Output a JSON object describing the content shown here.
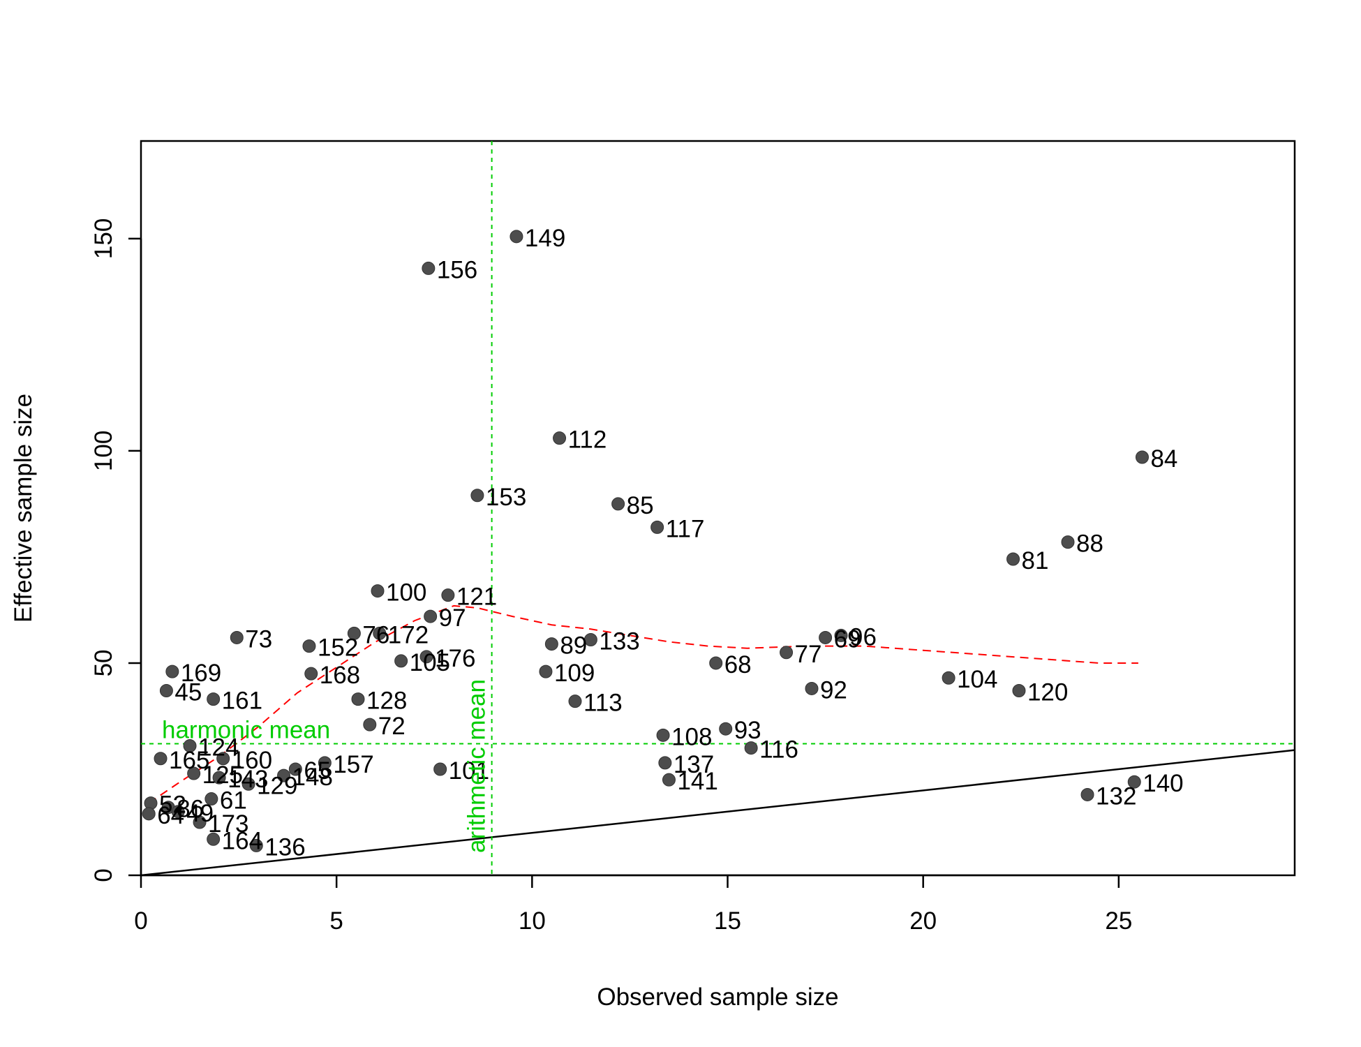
{
  "chart_data": {
    "type": "scatter",
    "xlabel": "Observed sample size",
    "ylabel": "Effective sample size",
    "xlim": [
      0,
      29.5
    ],
    "ylim": [
      0,
      173
    ],
    "x_ticks": [
      0,
      5,
      10,
      15,
      20,
      25
    ],
    "y_ticks": [
      0,
      50,
      100,
      150
    ],
    "grid": false,
    "point_color": "#4d4d4d",
    "points": [
      {
        "label": "149",
        "x": 9.6,
        "y": 150.5
      },
      {
        "label": "156",
        "x": 7.35,
        "y": 143
      },
      {
        "label": "112",
        "x": 10.7,
        "y": 103
      },
      {
        "label": "84",
        "x": 25.6,
        "y": 98.5
      },
      {
        "label": "153",
        "x": 8.6,
        "y": 89.5
      },
      {
        "label": "85",
        "x": 12.2,
        "y": 87.5
      },
      {
        "label": "117",
        "x": 13.2,
        "y": 82
      },
      {
        "label": "88",
        "x": 23.7,
        "y": 78.5
      },
      {
        "label": "81",
        "x": 22.3,
        "y": 74.5
      },
      {
        "label": "100",
        "x": 6.05,
        "y": 67
      },
      {
        "label": "121",
        "x": 7.85,
        "y": 66
      },
      {
        "label": "97",
        "x": 7.4,
        "y": 61
      },
      {
        "label": "73",
        "x": 2.45,
        "y": 56
      },
      {
        "label": "76",
        "x": 5.45,
        "y": 57
      },
      {
        "label": "172",
        "x": 6.1,
        "y": 57
      },
      {
        "label": "152",
        "x": 4.3,
        "y": 54
      },
      {
        "label": "89",
        "x": 10.5,
        "y": 54.5
      },
      {
        "label": "133",
        "x": 11.5,
        "y": 55.5
      },
      {
        "label": "69",
        "x": 17.5,
        "y": 56
      },
      {
        "label": "96",
        "x": 17.9,
        "y": 56.5
      },
      {
        "label": "77",
        "x": 16.5,
        "y": 52.5
      },
      {
        "label": "68",
        "x": 14.7,
        "y": 50
      },
      {
        "label": "176",
        "x": 7.3,
        "y": 51.5
      },
      {
        "label": "105",
        "x": 6.65,
        "y": 50.5
      },
      {
        "label": "169",
        "x": 0.8,
        "y": 48
      },
      {
        "label": "168",
        "x": 4.35,
        "y": 47.5
      },
      {
        "label": "109",
        "x": 10.35,
        "y": 48
      },
      {
        "label": "104",
        "x": 20.65,
        "y": 46.5
      },
      {
        "label": "45",
        "x": 0.65,
        "y": 43.5
      },
      {
        "label": "92",
        "x": 17.15,
        "y": 44
      },
      {
        "label": "120",
        "x": 22.45,
        "y": 43.5
      },
      {
        "label": "161",
        "x": 1.85,
        "y": 41.5
      },
      {
        "label": "128",
        "x": 5.55,
        "y": 41.5
      },
      {
        "label": "113",
        "x": 11.1,
        "y": 41
      },
      {
        "label": "72",
        "x": 5.85,
        "y": 35.5
      },
      {
        "label": "93",
        "x": 14.95,
        "y": 34.5
      },
      {
        "label": "108",
        "x": 13.35,
        "y": 33
      },
      {
        "label": "116",
        "x": 15.6,
        "y": 30
      },
      {
        "label": "124",
        "x": 1.25,
        "y": 30.5
      },
      {
        "label": "165",
        "x": 0.5,
        "y": 27.5
      },
      {
        "label": "160",
        "x": 2.1,
        "y": 27.5
      },
      {
        "label": "157",
        "x": 4.7,
        "y": 26.5
      },
      {
        "label": "137",
        "x": 13.4,
        "y": 26.5
      },
      {
        "label": "101",
        "x": 7.65,
        "y": 25
      },
      {
        "label": "65",
        "x": 3.95,
        "y": 25
      },
      {
        "label": "148",
        "x": 3.65,
        "y": 23.5
      },
      {
        "label": "125",
        "x": 1.35,
        "y": 24
      },
      {
        "label": "143",
        "x": 2.0,
        "y": 23
      },
      {
        "label": "129",
        "x": 2.75,
        "y": 21.5
      },
      {
        "label": "141",
        "x": 13.5,
        "y": 22.5
      },
      {
        "label": "140",
        "x": 25.4,
        "y": 22
      },
      {
        "label": "132",
        "x": 24.2,
        "y": 19
      },
      {
        "label": "161b",
        "x": 1.8,
        "y": 18
      },
      {
        "label": "52",
        "x": 0.25,
        "y": 17
      },
      {
        "label": "86",
        "x": 0.7,
        "y": 16
      },
      {
        "label": "64",
        "x": 0.2,
        "y": 14.5
      },
      {
        "label": "49",
        "x": 0.95,
        "y": 15
      },
      {
        "label": "173",
        "x": 1.5,
        "y": 12.5
      },
      {
        "label": "164",
        "x": 1.85,
        "y": 8.5
      },
      {
        "label": "136",
        "x": 2.95,
        "y": 7
      }
    ],
    "display_labels": {
      "161b": "61"
    },
    "reference_lines": {
      "harmonic_mean": {
        "label": "harmonic mean",
        "y": 31,
        "color": "#00cc00"
      },
      "arithmetic_mean": {
        "label": "arithmetic mean",
        "x": 8.97,
        "color": "#00cc00"
      },
      "identity_line": {
        "slope": 1,
        "intercept": 0,
        "color": "#000000"
      }
    },
    "smooth_curve": {
      "color": "#ff0000",
      "points": [
        [
          0.2,
          17
        ],
        [
          1.0,
          22
        ],
        [
          2.0,
          28
        ],
        [
          3.0,
          35
        ],
        [
          4.0,
          43
        ],
        [
          5.0,
          49
        ],
        [
          6.0,
          55
        ],
        [
          7.0,
          60
        ],
        [
          8.0,
          63.5
        ],
        [
          8.6,
          63
        ],
        [
          9.5,
          61
        ],
        [
          10.5,
          59
        ],
        [
          11.5,
          58
        ],
        [
          12.5,
          56.5
        ],
        [
          13.5,
          55
        ],
        [
          14.5,
          54
        ],
        [
          15.5,
          53.5
        ],
        [
          17.0,
          54
        ],
        [
          18.5,
          54
        ],
        [
          20.0,
          53
        ],
        [
          21.5,
          52
        ],
        [
          23.0,
          51
        ],
        [
          24.5,
          50
        ],
        [
          25.5,
          50
        ]
      ]
    }
  }
}
